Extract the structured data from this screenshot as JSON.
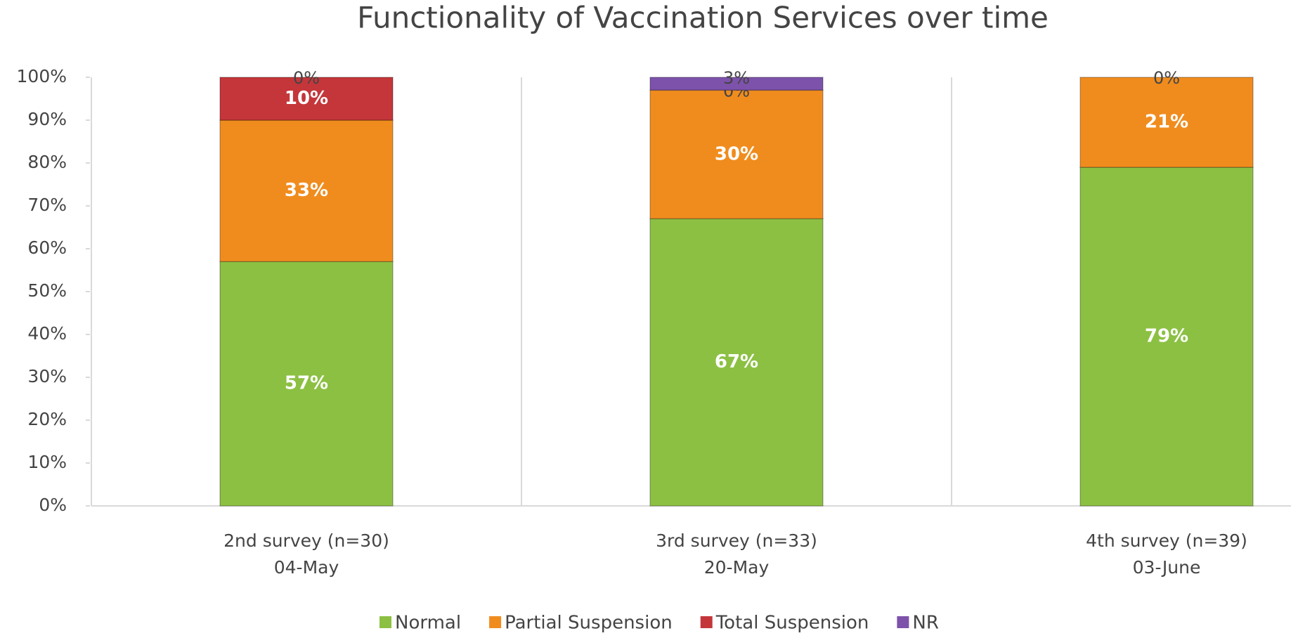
{
  "chart_data": {
    "type": "stacked_bar",
    "title": "Functionality of Vaccination Services over time",
    "categories": [
      [
        "2nd survey (n=30)",
        "04-May"
      ],
      [
        "3rd survey (n=33)",
        "20-May"
      ],
      [
        "4th survey (n=39)",
        "03-June"
      ]
    ],
    "series": [
      {
        "name": "Normal",
        "color": "#8cc043",
        "values": [
          57,
          67,
          79
        ],
        "value_labels": [
          "57%",
          "67%",
          "79%"
        ]
      },
      {
        "name": "Partial Suspension",
        "color": "#f08c1e",
        "values": [
          33,
          30,
          21
        ],
        "value_labels": [
          "33%",
          "30%",
          "21%"
        ]
      },
      {
        "name": "Total Suspension",
        "color": "#c4363a",
        "values": [
          10,
          0,
          0
        ],
        "value_labels": [
          "10%",
          "0%",
          null
        ]
      },
      {
        "name": "NR",
        "color": "#7d52ab",
        "values": [
          0,
          3,
          0
        ],
        "value_labels": [
          "0%",
          "3%",
          "0%"
        ]
      }
    ],
    "ylim": [
      0,
      100
    ],
    "yticks": [
      {
        "value": 0,
        "label": "0%"
      },
      {
        "value": 10,
        "label": "10%"
      },
      {
        "value": 20,
        "label": "20%"
      },
      {
        "value": 30,
        "label": "30%"
      },
      {
        "value": 40,
        "label": "40%"
      },
      {
        "value": 50,
        "label": "50%"
      },
      {
        "value": 60,
        "label": "60%"
      },
      {
        "value": 70,
        "label": "70%"
      },
      {
        "value": 80,
        "label": "80%"
      },
      {
        "value": 90,
        "label": "90%"
      },
      {
        "value": 100,
        "label": "100%"
      }
    ],
    "legend": "bottom"
  }
}
